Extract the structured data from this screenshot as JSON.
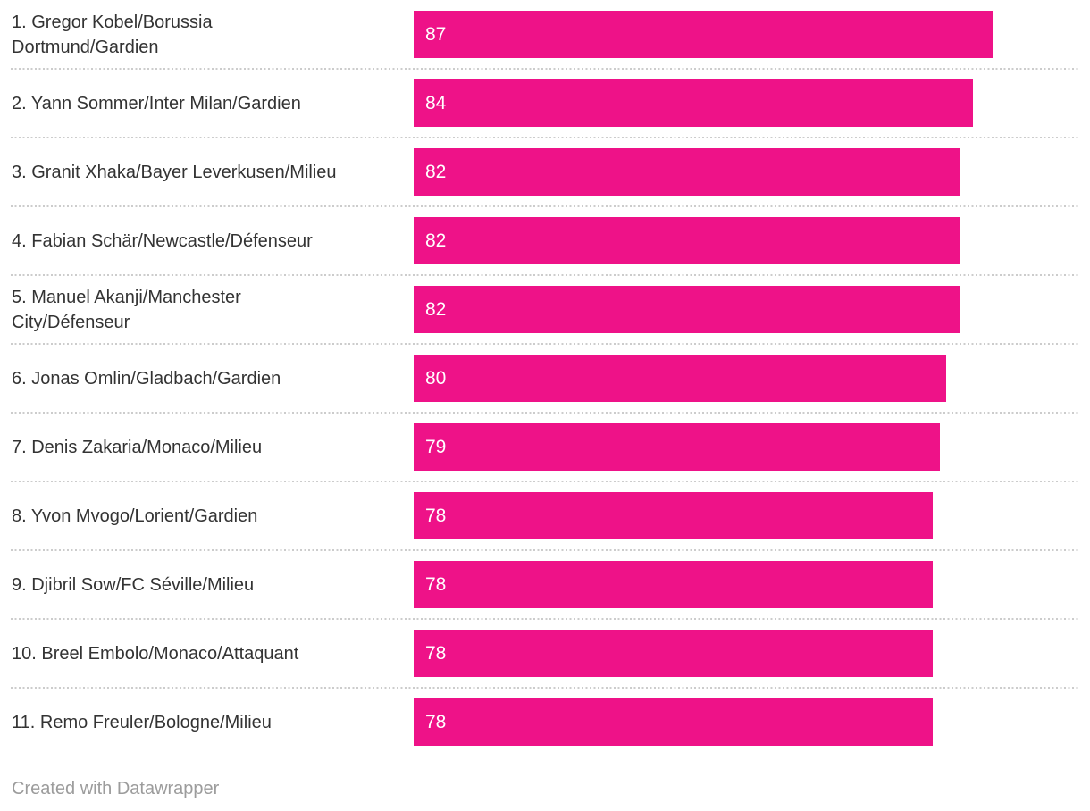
{
  "chart_data": {
    "type": "bar",
    "orientation": "horizontal",
    "title": "",
    "xlabel": "",
    "ylabel": "",
    "xlim": [
      0,
      100
    ],
    "grid": "dotted horizontal row separators",
    "legend": "none",
    "value_label_position": "inside-start",
    "categories": [
      "1. Gregor Kobel/Borussia Dortmund/Gardien",
      "2. Yann Sommer/Inter Milan/Gardien",
      "3. Granit Xhaka/Bayer Leverkusen/Milieu",
      "4. Fabian Schär/Newcastle/Défenseur",
      "5. Manuel Akanji/Manchester City/Défenseur",
      "6. Jonas Omlin/Gladbach/Gardien",
      "7. Denis Zakaria/Monaco/Milieu",
      "8. Yvon Mvogo/Lorient/Gardien",
      "9. Djibril Sow/FC Séville/Milieu",
      "10. Breel Embolo/Monaco/Attaquant",
      "11. Remo Freuler/Bologne/Milieu"
    ],
    "values": [
      87,
      84,
      82,
      82,
      82,
      80,
      79,
      78,
      78,
      78,
      78
    ],
    "bar_color": "#ee1288",
    "category_label_color": "#333333",
    "value_label_color": "#ffffff",
    "separator_color": "#cccccc"
  },
  "footer": {
    "attribution": "Created with Datawrapper"
  }
}
